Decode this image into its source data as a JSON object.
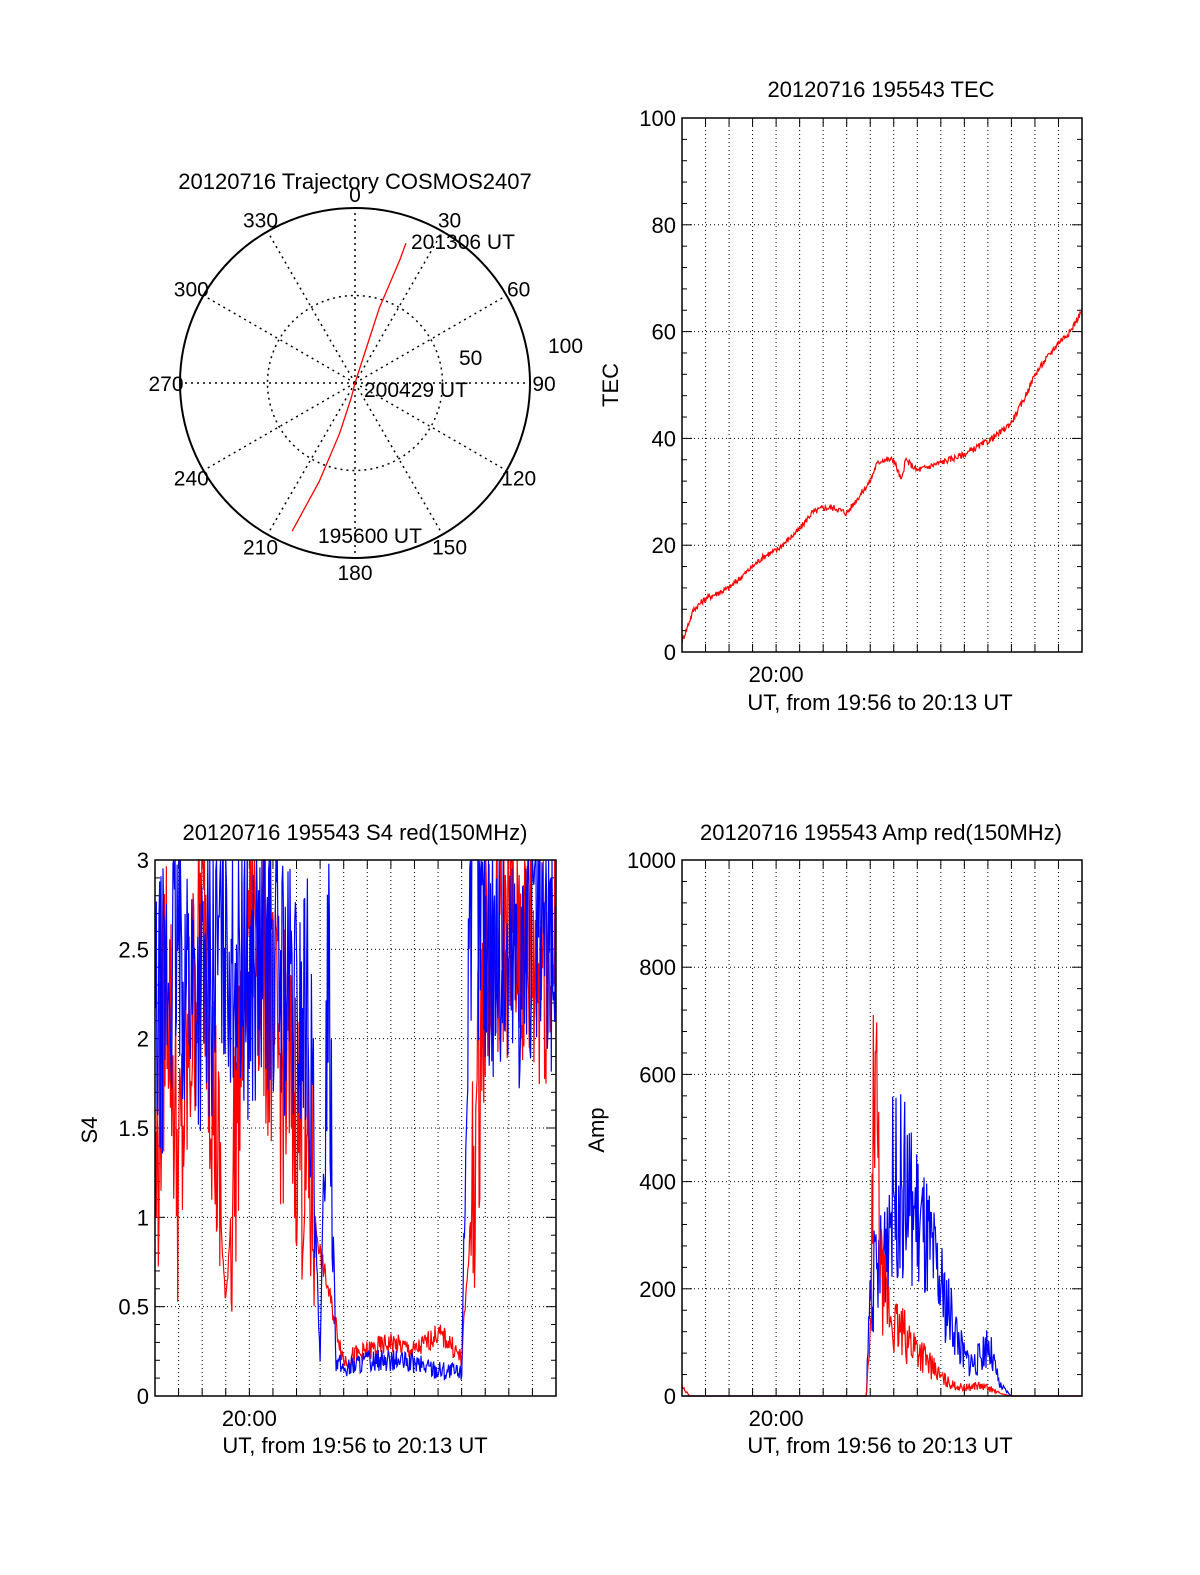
{
  "chart_data": [
    {
      "type": "polar",
      "title": "20120716 Trajectory COSMOS2407",
      "azimuth_labels": [
        "0",
        "30",
        "60",
        "90",
        "120",
        "150",
        "180",
        "210",
        "240",
        "270",
        "300",
        "330"
      ],
      "azimuth_ticks": [
        0,
        30,
        60,
        90,
        120,
        150,
        180,
        210,
        240,
        270,
        300,
        330
      ],
      "ring_labels": [
        "50",
        "100"
      ],
      "ring_values": [
        50,
        100
      ],
      "rmax": 100,
      "grid": true,
      "series": [
        {
          "color": "#ff0000",
          "points": [
            [
              203,
              92
            ],
            [
              200,
              60
            ],
            [
              197,
              30
            ],
            [
              194,
              8
            ],
            [
              90,
              0
            ],
            [
              18,
              15
            ],
            [
              18,
              45
            ],
            [
              20,
              75
            ],
            [
              20,
              85
            ]
          ]
        }
      ],
      "annotations": [
        {
          "text": "201306 UT",
          "az": 20,
          "r": 85
        },
        {
          "text": "200429 UT",
          "az": 90,
          "r": 0
        },
        {
          "text": "195600 UT",
          "az": 203,
          "r": 92
        }
      ]
    },
    {
      "type": "line",
      "title": "20120716 195543 TEC",
      "xlabel": "UT, from 19:56 to 20:13 UT",
      "ylabel": "TEC",
      "xlim": [
        "19:56",
        "20:13"
      ],
      "ylim": [
        0,
        100
      ],
      "yticks": [
        "0",
        "20",
        "40",
        "60",
        "80",
        "100"
      ],
      "xticks": [
        "20:00"
      ],
      "grid": true,
      "series": [
        {
          "color": "#ff0000",
          "x": [
            "19:56:00",
            "19:56:30",
            "19:57:00",
            "19:57:30",
            "19:58:00",
            "19:58:30",
            "19:59:00",
            "19:59:30",
            "20:00:00",
            "20:00:30",
            "20:01:00",
            "20:01:30",
            "20:02:00",
            "20:02:30",
            "20:03:00",
            "20:03:30",
            "20:04:00",
            "20:04:15",
            "20:04:30",
            "20:04:45",
            "20:05:00",
            "20:05:20",
            "20:05:30",
            "20:06:00",
            "20:07:00",
            "20:08:00",
            "20:09:00",
            "20:09:30",
            "20:10:00",
            "20:10:30",
            "20:11:00",
            "20:11:30",
            "20:12:00",
            "20:12:30",
            "20:13:00"
          ],
          "values": [
            2,
            8,
            10,
            11,
            12,
            14,
            16,
            18,
            19,
            21,
            23,
            26,
            27,
            27,
            26,
            29,
            32,
            35,
            36,
            36,
            36,
            32,
            36,
            34,
            35.5,
            37,
            39.5,
            41,
            43,
            47,
            52,
            55,
            58,
            60,
            64
          ]
        }
      ]
    },
    {
      "type": "line",
      "title": "20120716 195543 S4 red(150MHz)",
      "xlabel": "UT, from 19:56 to 20:13 UT",
      "ylabel": "S4",
      "xlim": [
        "19:56",
        "20:13"
      ],
      "ylim": [
        0,
        3
      ],
      "yticks": [
        "0",
        "0.5",
        "1",
        "1.5",
        "2",
        "2.5",
        "3"
      ],
      "xticks": [
        "20:00"
      ],
      "grid": true,
      "series": [
        {
          "color": "#ff0000",
          "x": [
            "19:56:00",
            "19:56:30",
            "19:57:00",
            "19:58:00",
            "19:59:00",
            "20:00:00",
            "20:01:00",
            "20:02:00",
            "20:02:30",
            "20:03:00",
            "20:04:00",
            "20:05:00",
            "20:06:00",
            "20:07:00",
            "20:08:00",
            "20:08:30",
            "20:09:00",
            "20:09:30",
            "20:10:00",
            "20:11:00",
            "20:12:00",
            "20:13:00"
          ],
          "values": [
            1.0,
            2.5,
            1.2,
            2.8,
            0.5,
            2.9,
            2.0,
            1.6,
            1.2,
            0.8,
            0.2,
            0.25,
            0.3,
            0.25,
            0.35,
            0.3,
            0.2,
            1.2,
            2.5,
            2.7,
            2.4,
            2.6
          ]
        },
        {
          "color": "#0000ff",
          "x": [
            "19:56:00",
            "19:57:00",
            "19:58:00",
            "19:59:00",
            "20:00:00",
            "20:01:00",
            "20:02:00",
            "20:02:30",
            "20:03:00",
            "20:03:20",
            "20:03:40",
            "20:04:00",
            "20:05:00",
            "20:06:00",
            "20:07:00",
            "20:08:00",
            "20:09:00",
            "20:09:20",
            "20:10:00",
            "20:11:00",
            "20:12:00",
            "20:13:00"
          ],
          "values": [
            2.0,
            2.5,
            2.2,
            2.6,
            2.3,
            2.5,
            2.1,
            2.2,
            0.15,
            2.65,
            0.2,
            0.15,
            0.2,
            0.2,
            0.18,
            0.15,
            0.12,
            2.9,
            2.6,
            2.4,
            2.6,
            2.5
          ]
        }
      ]
    },
    {
      "type": "line",
      "title": "20120716 195543 Amp red(150MHz)",
      "xlabel": "UT, from 19:56 to 20:13 UT",
      "ylabel": "Amp",
      "xlim": [
        "19:56",
        "20:13"
      ],
      "ylim": [
        0,
        1000
      ],
      "yticks": [
        "0",
        "200",
        "400",
        "600",
        "800",
        "1000"
      ],
      "xticks": [
        "20:00"
      ],
      "grid": true,
      "series": [
        {
          "color": "#0000ff",
          "x": [
            "19:56:00",
            "20:03:50",
            "20:04:00",
            "20:04:30",
            "20:05:00",
            "20:05:30",
            "20:06:00",
            "20:06:30",
            "20:07:00",
            "20:07:30",
            "20:08:00",
            "20:08:30",
            "20:09:00",
            "20:09:30",
            "20:10:00",
            "20:13:00"
          ],
          "values": [
            0,
            0,
            200,
            250,
            400,
            380,
            330,
            270,
            200,
            140,
            70,
            60,
            100,
            20,
            0,
            0
          ]
        },
        {
          "color": "#ff0000",
          "x": [
            "19:56:00",
            "19:56:10",
            "19:56:20",
            "20:03:50",
            "20:04:00",
            "20:04:10",
            "20:04:30",
            "20:05:00",
            "20:05:30",
            "20:06:00",
            "20:06:30",
            "20:07:00",
            "20:07:30",
            "20:08:00",
            "20:08:30",
            "20:09:00",
            "20:09:30",
            "20:10:00",
            "20:13:00"
          ],
          "values": [
            15,
            8,
            0,
            0,
            100,
            620,
            200,
            130,
            110,
            90,
            60,
            35,
            20,
            15,
            20,
            15,
            5,
            0,
            0
          ]
        }
      ]
    }
  ]
}
